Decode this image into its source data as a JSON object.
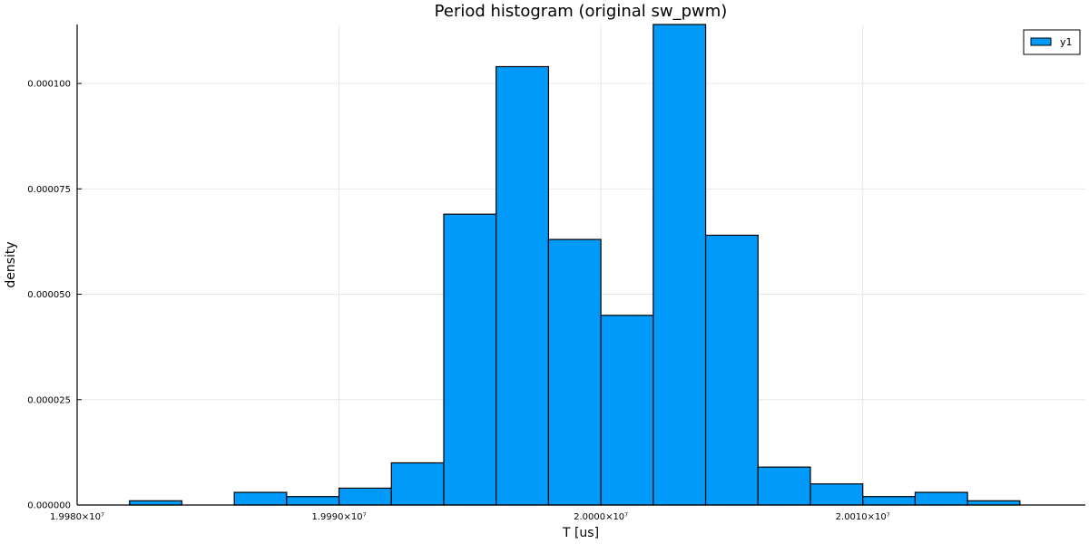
{
  "chart_data": {
    "type": "bar",
    "title": "Period histogram (original sw_pwm)",
    "xlabel": "T [us]",
    "ylabel": "density",
    "xlim": [
      19980000,
      20018500
    ],
    "ylim": [
      0,
      0.000114
    ],
    "x_ticks": [
      {
        "value": 19980000,
        "label": "1.9980×10⁷"
      },
      {
        "value": 19990000,
        "label": "1.9990×10⁷"
      },
      {
        "value": 20000000,
        "label": "2.0000×10⁷"
      },
      {
        "value": 20010000,
        "label": "2.0010×10⁷"
      }
    ],
    "y_ticks": [
      {
        "value": 0,
        "label": "0.000000"
      },
      {
        "value": 2.5e-05,
        "label": "0.000025"
      },
      {
        "value": 5e-05,
        "label": "0.000050"
      },
      {
        "value": 7.5e-05,
        "label": "0.000075"
      },
      {
        "value": 0.0001,
        "label": "0.000100"
      }
    ],
    "grid": true,
    "legend_position": "top-right",
    "bin_width": 2000,
    "bin_starts": [
      19982000,
      19984000,
      19986000,
      19988000,
      19990000,
      19992000,
      19994000,
      19996000,
      19998000,
      20000000,
      20002000,
      20004000,
      20006000,
      20008000,
      20010000,
      20012000,
      20014000
    ],
    "series": [
      {
        "name": "y1",
        "color": "#009AFA",
        "values": [
          1e-06,
          0.0,
          3e-06,
          2e-06,
          4e-06,
          1e-05,
          6.9e-05,
          0.000104,
          6.3e-05,
          4.5e-05,
          0.000114,
          6.4e-05,
          9e-06,
          5e-06,
          2e-06,
          3e-06,
          1e-06
        ]
      }
    ]
  }
}
